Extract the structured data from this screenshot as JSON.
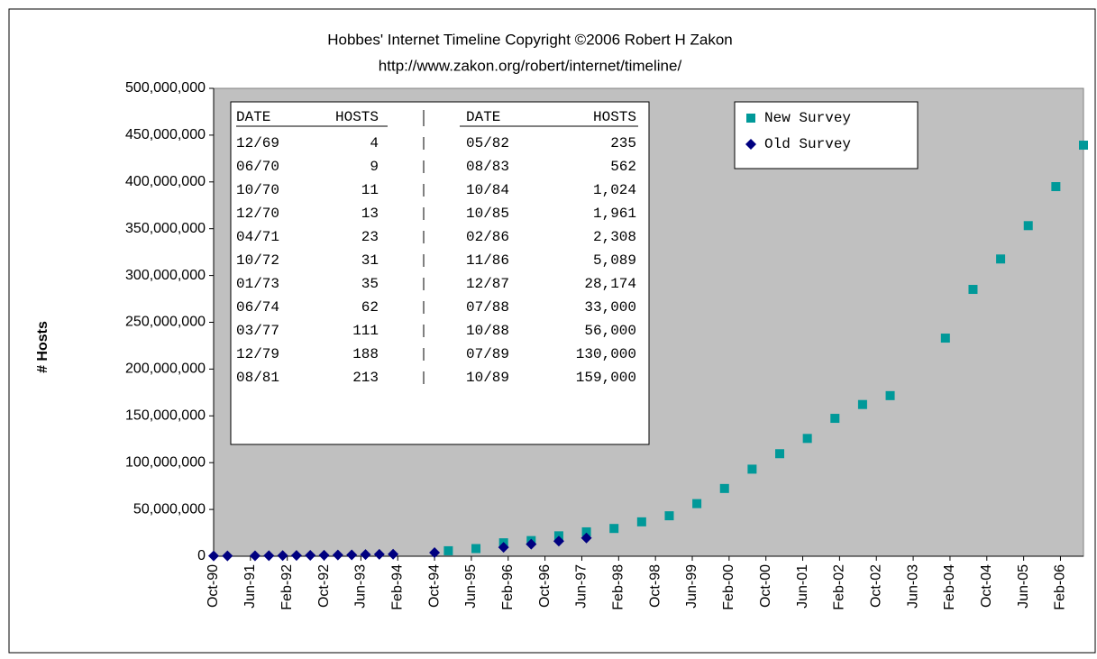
{
  "chart_data": {
    "type": "scatter",
    "title": "Hobbes' Internet Timeline Copyright ©2006 Robert H Zakon",
    "subtitle": "http://www.zakon.org/robert/internet/timeline/",
    "y_label": "# Hosts",
    "xlim": [
      "Oct-90",
      "Jul-06"
    ],
    "xticks": [
      "Oct-90",
      "Jun-91",
      "Feb-92",
      "Oct-92",
      "Jun-93",
      "Feb-94",
      "Oct-94",
      "Jun-95",
      "Feb-96",
      "Oct-96",
      "Jun-97",
      "Feb-98",
      "Oct-98",
      "Jun-99",
      "Feb-00",
      "Oct-00",
      "Jun-01",
      "Feb-02",
      "Oct-02",
      "Jun-03",
      "Feb-04",
      "Oct-04",
      "Jun-05",
      "Feb-06"
    ],
    "ylim": [
      0,
      500000000
    ],
    "yticks": [
      {
        "value": 0,
        "label": "0"
      },
      {
        "value": 50000000,
        "label": "50,000,000"
      },
      {
        "value": 100000000,
        "label": "100,000,000"
      },
      {
        "value": 150000000,
        "label": "150,000,000"
      },
      {
        "value": 200000000,
        "label": "200,000,000"
      },
      {
        "value": 250000000,
        "label": "250,000,000"
      },
      {
        "value": 300000000,
        "label": "300,000,000"
      },
      {
        "value": 350000000,
        "label": "350,000,000"
      },
      {
        "value": 400000000,
        "label": "400,000,000"
      },
      {
        "value": 450000000,
        "label": "450,000,000"
      },
      {
        "value": 500000000,
        "label": "500,000,000"
      }
    ],
    "grid": false,
    "legend": "top-right",
    "series": [
      {
        "name": "New Survey",
        "color": "#009999",
        "marker": "square",
        "x": [
          "Jan-95",
          "Jul-95",
          "Jan-96",
          "Jul-96",
          "Jan-97",
          "Jul-97",
          "Jan-98",
          "Jul-98",
          "Jan-99",
          "Jul-99",
          "Jan-00",
          "Jul-00",
          "Jan-01",
          "Jul-01",
          "Jan-02",
          "Jul-02",
          "Jan-03",
          "Jan-04",
          "Jul-04",
          "Jan-05",
          "Jul-05",
          "Jan-06",
          "Jul-06"
        ],
        "values": [
          5846000,
          8200000,
          14352000,
          16729000,
          21819000,
          26053000,
          29670000,
          36739000,
          43230000,
          56218000,
          72398092,
          93047785,
          109574429,
          125888197,
          147344723,
          162128493,
          171638297,
          233101481,
          285139107,
          317646084,
          353284187,
          394991609,
          439286364
        ]
      },
      {
        "name": "Old Survey",
        "color": "#000080",
        "marker": "diamond",
        "x": [
          "Oct-90",
          "Jan-91",
          "Jul-91",
          "Oct-91",
          "Jan-92",
          "Apr-92",
          "Jul-92",
          "Oct-92",
          "Jan-93",
          "Apr-93",
          "Jul-93",
          "Oct-93",
          "Jan-94",
          "Oct-94",
          "Jan-96",
          "Jul-96",
          "Jan-97",
          "Jul-97"
        ],
        "values": [
          313000,
          376000,
          535000,
          617000,
          727000,
          890000,
          992000,
          1136000,
          1313000,
          1486000,
          1776000,
          2056000,
          2217000,
          3864000,
          9472000,
          12881000,
          16146000,
          19540000
        ]
      }
    ],
    "table": {
      "headers": [
        "DATE",
        "HOSTS",
        "DATE",
        "HOSTS"
      ],
      "rows": [
        [
          "12/69",
          "4",
          "05/82",
          "235"
        ],
        [
          "06/70",
          "9",
          "08/83",
          "562"
        ],
        [
          "10/70",
          "11",
          "10/84",
          "1,024"
        ],
        [
          "12/70",
          "13",
          "10/85",
          "1,961"
        ],
        [
          "04/71",
          "23",
          "02/86",
          "2,308"
        ],
        [
          "10/72",
          "31",
          "11/86",
          "5,089"
        ],
        [
          "01/73",
          "35",
          "12/87",
          "28,174"
        ],
        [
          "06/74",
          "62",
          "07/88",
          "33,000"
        ],
        [
          "03/77",
          "111",
          "10/88",
          "56,000"
        ],
        [
          "12/79",
          "188",
          "07/89",
          "130,000"
        ],
        [
          "08/81",
          "213",
          "10/89",
          "159,000"
        ]
      ]
    }
  }
}
